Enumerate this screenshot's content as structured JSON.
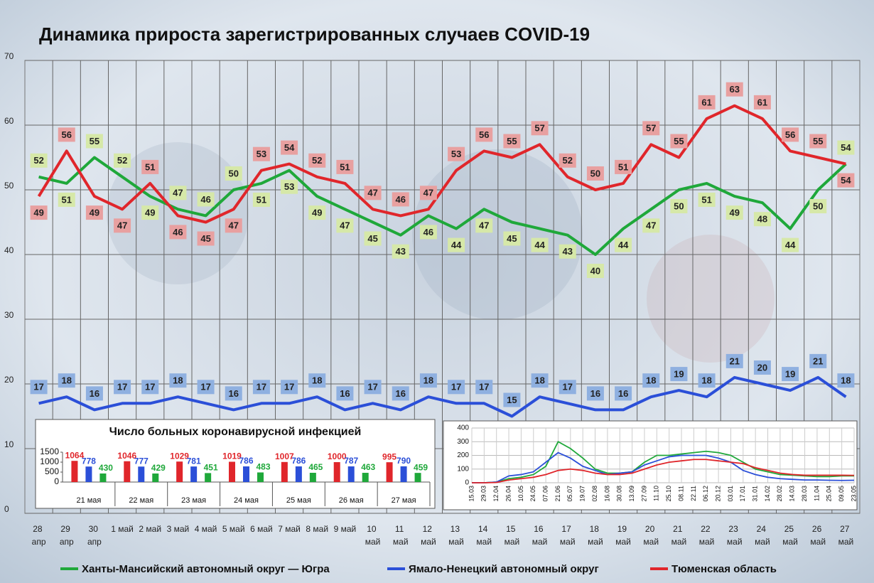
{
  "chart_data": [
    {
      "type": "line",
      "title": "Динамика прироста зарегистрированных случаев COVID-19",
      "categories": [
        "28 апр",
        "29 апр",
        "30 апр",
        "1 май",
        "2 май",
        "3 май",
        "4 май",
        "5 май",
        "6 май",
        "7 май",
        "8 май",
        "9 май",
        "10 май",
        "11 май",
        "12 май",
        "13 май",
        "14 май",
        "15 май",
        "16 май",
        "17 май",
        "18 май",
        "19 май",
        "20 май",
        "21 май",
        "22 май",
        "23 май",
        "24 май",
        "25 май",
        "26 май",
        "27 май"
      ],
      "series": [
        {
          "name": "Ханты-Мансийский автономный округ — Югра",
          "color": "#1fa83a",
          "values": [
            52,
            51,
            55,
            52,
            49,
            47,
            46,
            50,
            51,
            53,
            49,
            47,
            45,
            43,
            46,
            44,
            47,
            45,
            44,
            43,
            40,
            44,
            47,
            50,
            51,
            49,
            48,
            44,
            50,
            54
          ]
        },
        {
          "name": "Ямало-Ненецкий автономный округ",
          "color": "#2b4fd8",
          "values": [
            17,
            18,
            16,
            17,
            17,
            18,
            17,
            16,
            17,
            17,
            18,
            16,
            17,
            16,
            18,
            17,
            17,
            15,
            18,
            17,
            16,
            16,
            18,
            19,
            18,
            21,
            20,
            19,
            21,
            18
          ]
        },
        {
          "name": "Тюменская область",
          "color": "#e0262b",
          "values": [
            49,
            56,
            49,
            47,
            51,
            46,
            45,
            47,
            53,
            54,
            52,
            51,
            47,
            46,
            47,
            53,
            56,
            55,
            57,
            52,
            50,
            51,
            57,
            55,
            61,
            63,
            61,
            56,
            55,
            54
          ]
        }
      ],
      "ylim": [
        0,
        70
      ],
      "yticks": [
        0,
        10,
        20,
        30,
        40,
        50,
        60,
        70
      ],
      "grid": true,
      "legend": "bottom"
    },
    {
      "type": "bar",
      "title": "Число больных коронавирусной инфекцией",
      "categories": [
        "21 мая",
        "22 мая",
        "23 мая",
        "24 мая",
        "25 мая",
        "26 мая",
        "27 мая"
      ],
      "series": [
        {
          "color": "#e0262b",
          "values": [
            1064,
            1046,
            1029,
            1019,
            1007,
            1000,
            995
          ]
        },
        {
          "color": "#2b4fd8",
          "values": [
            778,
            777,
            781,
            786,
            786,
            787,
            790
          ]
        },
        {
          "color": "#1fa83a",
          "values": [
            430,
            429,
            451,
            483,
            465,
            463,
            459
          ]
        }
      ],
      "ylim": [
        0,
        1500
      ],
      "yticks": [
        0,
        500,
        1000,
        1500
      ]
    },
    {
      "type": "line",
      "categories": [
        "15.03",
        "29.03",
        "12.04",
        "26.04",
        "10.05",
        "24.05",
        "07.06",
        "21.06",
        "05.07",
        "19.07",
        "02.08",
        "16.08",
        "30.08",
        "13.09",
        "27.09",
        "11.10",
        "25.10",
        "08.11",
        "22.11",
        "06.12",
        "20.12",
        "03.01",
        "17.01",
        "31.01",
        "14.02",
        "28.02",
        "14.03",
        "28.03",
        "11.04",
        "25.04",
        "09.05",
        "23.05"
      ],
      "series": [
        {
          "color": "#1fa83a",
          "values": [
            0,
            0,
            5,
            30,
            40,
            60,
            120,
            300,
            250,
            180,
            100,
            70,
            70,
            80,
            150,
            200,
            200,
            210,
            220,
            230,
            220,
            200,
            150,
            100,
            80,
            60,
            55,
            50,
            45,
            45,
            50,
            50
          ]
        },
        {
          "color": "#2b4fd8",
          "values": [
            0,
            0,
            5,
            50,
            60,
            80,
            150,
            220,
            180,
            120,
            90,
            60,
            70,
            80,
            130,
            160,
            190,
            200,
            200,
            200,
            180,
            150,
            90,
            60,
            40,
            30,
            25,
            20,
            20,
            18,
            17,
            18
          ]
        },
        {
          "color": "#e0262b",
          "values": [
            0,
            0,
            2,
            20,
            30,
            40,
            60,
            90,
            100,
            90,
            70,
            60,
            60,
            70,
            100,
            130,
            150,
            160,
            170,
            170,
            160,
            150,
            140,
            110,
            90,
            70,
            60,
            55,
            55,
            55,
            55,
            54
          ]
        }
      ],
      "ylim": [
        0,
        400
      ],
      "yticks": [
        0,
        100,
        200,
        300,
        400
      ],
      "grid": true
    }
  ]
}
